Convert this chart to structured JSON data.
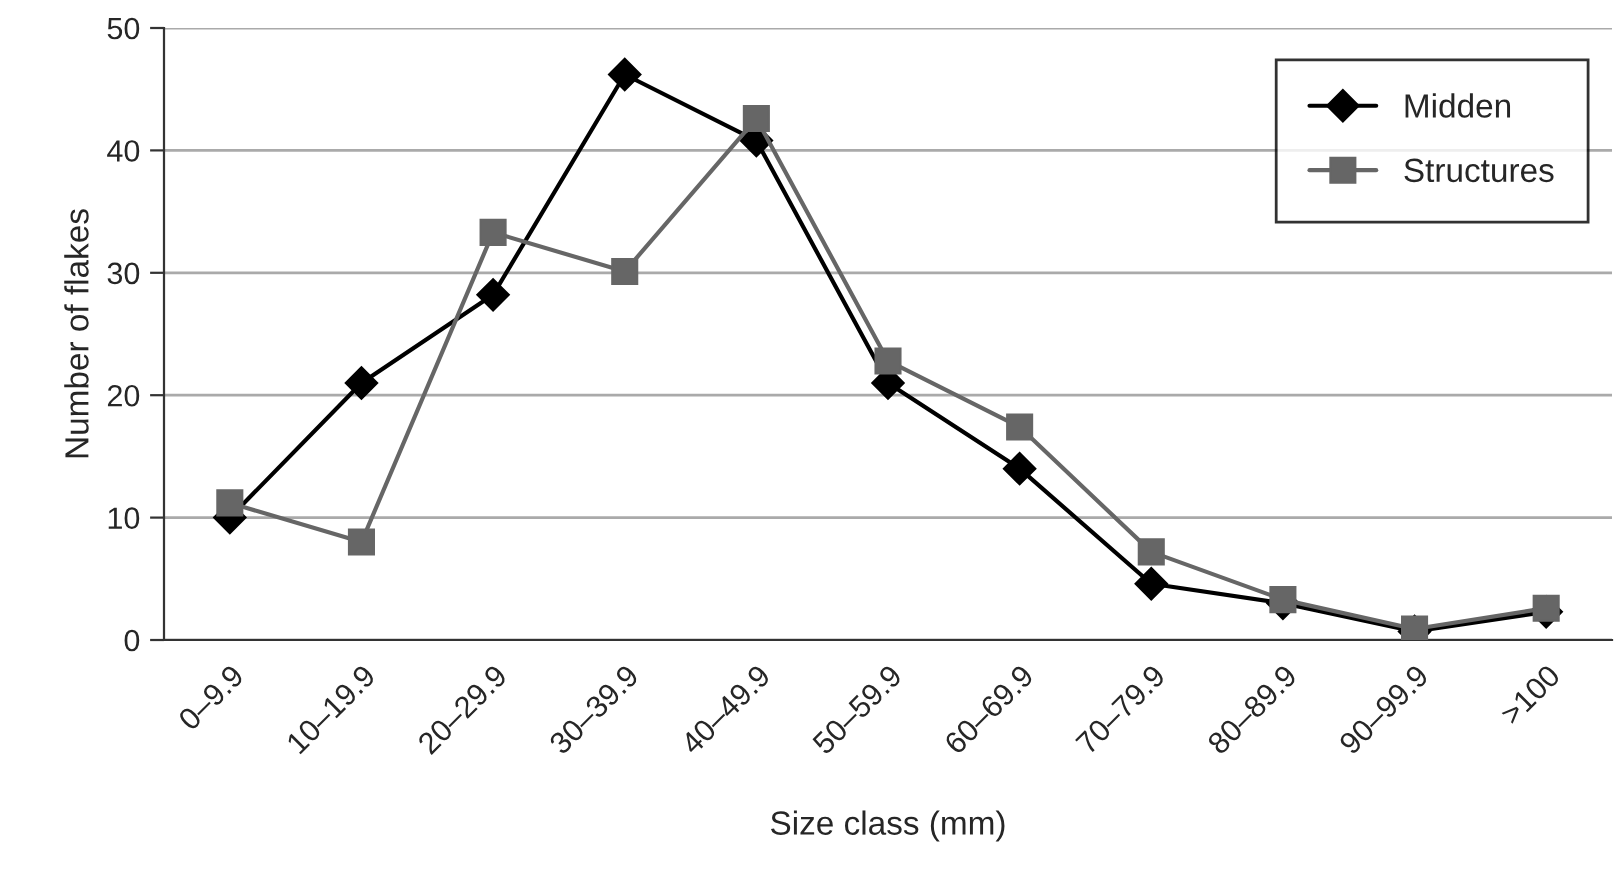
{
  "chart_data": {
    "type": "line",
    "xlabel": "Size class (mm)",
    "ylabel": "Number of flakes",
    "categories": [
      "0–9.9",
      "10–19.9",
      "20–29.9",
      "30–39.9",
      "40–49.9",
      "50–59.9",
      "60–69.9",
      "70–79.9",
      "80–89.9",
      "90–99.9",
      ">100"
    ],
    "series": [
      {
        "name": "Midden",
        "color": "#000000",
        "marker": "diamond",
        "values": [
          10,
          21,
          28.2,
          46.2,
          40.8,
          21,
          14,
          4.6,
          3,
          0.7,
          2.3
        ]
      },
      {
        "name": "Structures",
        "color": "#666666",
        "marker": "square",
        "values": [
          11.2,
          8,
          33.3,
          30.1,
          42.6,
          22.8,
          17.4,
          7.2,
          3.3,
          0.9,
          2.6
        ]
      }
    ],
    "ylim": [
      0,
      50
    ],
    "yticks": [
      0,
      10,
      20,
      30,
      40,
      50
    ],
    "grid": "y",
    "legend": "top right"
  }
}
